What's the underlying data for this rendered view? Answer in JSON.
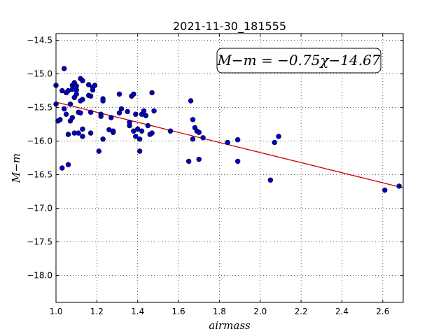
{
  "chart_data": {
    "type": "scatter",
    "title": "2021-11-30_181555",
    "xlabel": "airmass",
    "ylabel": "M−m",
    "xlim": [
      1.0,
      2.7
    ],
    "ylim": [
      -18.4,
      -14.4
    ],
    "y_inverted": true,
    "grid": true,
    "x_ticks": [
      1.0,
      1.2,
      1.4,
      1.6,
      1.8,
      2.0,
      2.2,
      2.4,
      2.6
    ],
    "x_tick_labels": [
      "1.0",
      "1.2",
      "1.4",
      "1.6",
      "1.8",
      "2.0",
      "2.2",
      "2.4",
      "2.6"
    ],
    "y_ticks": [
      -14.5,
      -15.0,
      -15.5,
      -16.0,
      -16.5,
      -17.0,
      -17.5,
      -18.0
    ],
    "y_tick_labels": [
      "−14.5",
      "−15.0",
      "−15.5",
      "−16.0",
      "−16.5",
      "−17.0",
      "−17.5",
      "−18.0"
    ],
    "annotation": "M−m = −0.75χ−14.67",
    "fit_line": {
      "slope": -0.75,
      "intercept": -14.67,
      "color": "#cc0000"
    },
    "marker_color": "#0000cc",
    "series": [
      {
        "points": [
          [
            1.0,
            -15.17
          ],
          [
            1.0,
            -15.45
          ],
          [
            1.01,
            -15.7
          ],
          [
            1.02,
            -15.68
          ],
          [
            1.03,
            -15.25
          ],
          [
            1.03,
            -16.4
          ],
          [
            1.04,
            -15.52
          ],
          [
            1.04,
            -14.92
          ],
          [
            1.05,
            -15.28
          ],
          [
            1.05,
            -15.6
          ],
          [
            1.06,
            -15.25
          ],
          [
            1.06,
            -16.35
          ],
          [
            1.06,
            -15.9
          ],
          [
            1.07,
            -15.7
          ],
          [
            1.07,
            -15.45
          ],
          [
            1.08,
            -15.17
          ],
          [
            1.08,
            -15.65
          ],
          [
            1.08,
            -15.23
          ],
          [
            1.09,
            -15.13
          ],
          [
            1.09,
            -15.35
          ],
          [
            1.09,
            -15.88
          ],
          [
            1.1,
            -15.18
          ],
          [
            1.1,
            -15.24
          ],
          [
            1.1,
            -15.3
          ],
          [
            1.11,
            -15.57
          ],
          [
            1.11,
            -15.88
          ],
          [
            1.12,
            -15.07
          ],
          [
            1.12,
            -15.4
          ],
          [
            1.12,
            -15.58
          ],
          [
            1.13,
            -15.1
          ],
          [
            1.13,
            -15.38
          ],
          [
            1.13,
            -15.82
          ],
          [
            1.13,
            -15.93
          ],
          [
            1.16,
            -15.16
          ],
          [
            1.16,
            -15.32
          ],
          [
            1.17,
            -15.33
          ],
          [
            1.17,
            -15.57
          ],
          [
            1.17,
            -15.88
          ],
          [
            1.18,
            -15.2
          ],
          [
            1.18,
            -15.24
          ],
          [
            1.19,
            -15.17
          ],
          [
            1.21,
            -16.15
          ],
          [
            1.22,
            -15.6
          ],
          [
            1.22,
            -15.63
          ],
          [
            1.23,
            -15.37
          ],
          [
            1.23,
            -15.4
          ],
          [
            1.23,
            -15.97
          ],
          [
            1.26,
            -15.83
          ],
          [
            1.27,
            -15.65
          ],
          [
            1.28,
            -15.87
          ],
          [
            1.28,
            -15.85
          ],
          [
            1.31,
            -15.58
          ],
          [
            1.31,
            -15.3
          ],
          [
            1.32,
            -15.52
          ],
          [
            1.35,
            -15.56
          ],
          [
            1.36,
            -15.77
          ],
          [
            1.36,
            -15.72
          ],
          [
            1.37,
            -15.33
          ],
          [
            1.38,
            -15.3
          ],
          [
            1.38,
            -15.85
          ],
          [
            1.39,
            -15.93
          ],
          [
            1.39,
            -15.6
          ],
          [
            1.4,
            -15.82
          ],
          [
            1.41,
            -16.15
          ],
          [
            1.41,
            -15.97
          ],
          [
            1.42,
            -15.85
          ],
          [
            1.42,
            -15.6
          ],
          [
            1.43,
            -15.55
          ],
          [
            1.44,
            -15.62
          ],
          [
            1.45,
            -15.77
          ],
          [
            1.46,
            -15.9
          ],
          [
            1.47,
            -15.88
          ],
          [
            1.47,
            -15.28
          ],
          [
            1.48,
            -15.55
          ],
          [
            1.56,
            -15.85
          ],
          [
            1.65,
            -16.3
          ],
          [
            1.66,
            -15.4
          ],
          [
            1.67,
            -15.68
          ],
          [
            1.67,
            -15.97
          ],
          [
            1.68,
            -15.8
          ],
          [
            1.69,
            -15.85
          ],
          [
            1.7,
            -16.27
          ],
          [
            1.7,
            -15.87
          ],
          [
            1.72,
            -15.95
          ],
          [
            1.84,
            -16.02
          ],
          [
            1.89,
            -15.98
          ],
          [
            1.89,
            -16.3
          ],
          [
            2.05,
            -16.58
          ],
          [
            2.07,
            -16.02
          ],
          [
            2.09,
            -15.93
          ],
          [
            2.61,
            -16.73
          ],
          [
            2.68,
            -16.67
          ]
        ]
      }
    ]
  }
}
